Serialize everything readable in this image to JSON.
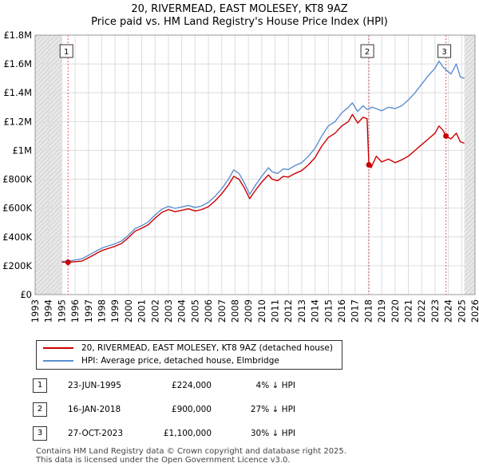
{
  "chart_data": {
    "type": "line",
    "title": "20, RIVERMEAD, EAST MOLESEY, KT8 9AZ",
    "subtitle": "Price paid vs. HM Land Registry's House Price Index (HPI)",
    "xlim": [
      1993,
      2026
    ],
    "ylim": [
      0,
      1800000
    ],
    "x_ticks": [
      1993,
      1994,
      1995,
      1996,
      1997,
      1998,
      1999,
      2000,
      2001,
      2002,
      2003,
      2004,
      2005,
      2006,
      2007,
      2008,
      2009,
      2010,
      2011,
      2012,
      2013,
      2014,
      2015,
      2016,
      2017,
      2018,
      2019,
      2020,
      2021,
      2022,
      2023,
      2024,
      2025,
      2026
    ],
    "y_ticks": [
      {
        "value": 0,
        "label": "£0"
      },
      {
        "value": 200000,
        "label": "£200K"
      },
      {
        "value": 400000,
        "label": "£400K"
      },
      {
        "value": 600000,
        "label": "£600K"
      },
      {
        "value": 800000,
        "label": "£800K"
      },
      {
        "value": 1000000,
        "label": "£1M"
      },
      {
        "value": 1200000,
        "label": "£1.2M"
      },
      {
        "value": 1400000,
        "label": "£1.4M"
      },
      {
        "value": 1600000,
        "label": "£1.6M"
      },
      {
        "value": 1800000,
        "label": "£1.8M"
      }
    ],
    "shaded_regions": [
      [
        1993,
        1995.0
      ],
      [
        2025.2,
        2026
      ]
    ],
    "series": [
      {
        "name": "20, RIVERMEAD, EAST MOLESEY, KT8 9AZ (detached house)",
        "color": "#cc0000",
        "points": [
          [
            1995.0,
            225000
          ],
          [
            1995.47,
            224000
          ],
          [
            1996.0,
            228000
          ],
          [
            1996.5,
            232000
          ],
          [
            1997.0,
            255000
          ],
          [
            1997.5,
            280000
          ],
          [
            1998.0,
            305000
          ],
          [
            1998.5,
            320000
          ],
          [
            1999.0,
            335000
          ],
          [
            1999.5,
            355000
          ],
          [
            2000.0,
            395000
          ],
          [
            2000.5,
            440000
          ],
          [
            2001.0,
            460000
          ],
          [
            2001.5,
            485000
          ],
          [
            2002.0,
            530000
          ],
          [
            2002.5,
            570000
          ],
          [
            2003.0,
            590000
          ],
          [
            2003.5,
            575000
          ],
          [
            2004.0,
            585000
          ],
          [
            2004.5,
            595000
          ],
          [
            2005.0,
            580000
          ],
          [
            2005.5,
            590000
          ],
          [
            2006.0,
            610000
          ],
          [
            2006.5,
            650000
          ],
          [
            2007.0,
            700000
          ],
          [
            2007.5,
            760000
          ],
          [
            2007.9,
            820000
          ],
          [
            2008.3,
            800000
          ],
          [
            2008.7,
            740000
          ],
          [
            2009.1,
            665000
          ],
          [
            2009.5,
            720000
          ],
          [
            2010.0,
            780000
          ],
          [
            2010.5,
            830000
          ],
          [
            2010.8,
            800000
          ],
          [
            2011.2,
            790000
          ],
          [
            2011.6,
            820000
          ],
          [
            2012.0,
            815000
          ],
          [
            2012.5,
            840000
          ],
          [
            2013.0,
            860000
          ],
          [
            2013.5,
            900000
          ],
          [
            2014.0,
            950000
          ],
          [
            2014.5,
            1030000
          ],
          [
            2015.0,
            1090000
          ],
          [
            2015.5,
            1120000
          ],
          [
            2016.0,
            1170000
          ],
          [
            2016.5,
            1200000
          ],
          [
            2016.8,
            1250000
          ],
          [
            2017.2,
            1190000
          ],
          [
            2017.6,
            1230000
          ],
          [
            2017.9,
            1220000
          ],
          [
            2018.04,
            900000
          ],
          [
            2018.2,
            880000
          ],
          [
            2018.6,
            960000
          ],
          [
            2019.0,
            920000
          ],
          [
            2019.5,
            940000
          ],
          [
            2020.0,
            915000
          ],
          [
            2020.5,
            935000
          ],
          [
            2021.0,
            960000
          ],
          [
            2021.5,
            1000000
          ],
          [
            2022.0,
            1040000
          ],
          [
            2022.5,
            1080000
          ],
          [
            2023.0,
            1120000
          ],
          [
            2023.3,
            1170000
          ],
          [
            2023.6,
            1140000
          ],
          [
            2023.82,
            1100000
          ],
          [
            2024.2,
            1080000
          ],
          [
            2024.6,
            1120000
          ],
          [
            2024.9,
            1060000
          ],
          [
            2025.2,
            1050000
          ]
        ]
      },
      {
        "name": "HPI: Average price, detached house, Elmbridge",
        "color": "#5b8fd0",
        "points": [
          [
            1995.0,
            230000
          ],
          [
            1995.5,
            232000
          ],
          [
            1996.0,
            240000
          ],
          [
            1996.5,
            248000
          ],
          [
            1997.0,
            272000
          ],
          [
            1997.5,
            298000
          ],
          [
            1998.0,
            322000
          ],
          [
            1998.5,
            338000
          ],
          [
            1999.0,
            352000
          ],
          [
            1999.5,
            372000
          ],
          [
            2000.0,
            412000
          ],
          [
            2000.5,
            458000
          ],
          [
            2001.0,
            478000
          ],
          [
            2001.5,
            505000
          ],
          [
            2002.0,
            552000
          ],
          [
            2002.5,
            592000
          ],
          [
            2003.0,
            612000
          ],
          [
            2003.5,
            598000
          ],
          [
            2004.0,
            608000
          ],
          [
            2004.5,
            618000
          ],
          [
            2005.0,
            605000
          ],
          [
            2005.5,
            615000
          ],
          [
            2006.0,
            640000
          ],
          [
            2006.5,
            682000
          ],
          [
            2007.0,
            735000
          ],
          [
            2007.5,
            800000
          ],
          [
            2007.9,
            865000
          ],
          [
            2008.3,
            840000
          ],
          [
            2008.7,
            775000
          ],
          [
            2009.1,
            695000
          ],
          [
            2009.5,
            755000
          ],
          [
            2010.0,
            820000
          ],
          [
            2010.5,
            880000
          ],
          [
            2010.8,
            850000
          ],
          [
            2011.2,
            840000
          ],
          [
            2011.6,
            872000
          ],
          [
            2012.0,
            868000
          ],
          [
            2012.5,
            895000
          ],
          [
            2013.0,
            915000
          ],
          [
            2013.5,
            960000
          ],
          [
            2014.0,
            1015000
          ],
          [
            2014.5,
            1100000
          ],
          [
            2015.0,
            1170000
          ],
          [
            2015.5,
            1200000
          ],
          [
            2016.0,
            1260000
          ],
          [
            2016.5,
            1300000
          ],
          [
            2016.8,
            1330000
          ],
          [
            2017.2,
            1270000
          ],
          [
            2017.6,
            1310000
          ],
          [
            2017.9,
            1285000
          ],
          [
            2018.3,
            1300000
          ],
          [
            2018.6,
            1290000
          ],
          [
            2019.0,
            1275000
          ],
          [
            2019.5,
            1300000
          ],
          [
            2020.0,
            1290000
          ],
          [
            2020.5,
            1310000
          ],
          [
            2021.0,
            1350000
          ],
          [
            2021.5,
            1400000
          ],
          [
            2022.0,
            1460000
          ],
          [
            2022.5,
            1520000
          ],
          [
            2023.0,
            1570000
          ],
          [
            2023.3,
            1620000
          ],
          [
            2023.6,
            1580000
          ],
          [
            2023.82,
            1560000
          ],
          [
            2024.2,
            1530000
          ],
          [
            2024.6,
            1600000
          ],
          [
            2024.9,
            1510000
          ],
          [
            2025.2,
            1500000
          ]
        ]
      }
    ],
    "sales": [
      {
        "label": "1",
        "x": 1995.47,
        "y": 224000
      },
      {
        "label": "2",
        "x": 2018.04,
        "y": 900000
      },
      {
        "label": "3",
        "x": 2023.82,
        "y": 1100000
      }
    ]
  },
  "legend": {
    "items": [
      {
        "label": "20, RIVERMEAD, EAST MOLESEY, KT8 9AZ (detached house)",
        "color": "#cc0000"
      },
      {
        "label": "HPI: Average price, detached house, Elmbridge",
        "color": "#5b8fd0"
      }
    ]
  },
  "transactions": [
    {
      "num": "1",
      "date": "23-JUN-1995",
      "price": "£224,000",
      "hpi": "4% ↓ HPI"
    },
    {
      "num": "2",
      "date": "16-JAN-2018",
      "price": "£900,000",
      "hpi": "27% ↓ HPI"
    },
    {
      "num": "3",
      "date": "27-OCT-2023",
      "price": "£1,100,000",
      "hpi": "30% ↓ HPI"
    }
  ],
  "footer": {
    "line1": "Contains HM Land Registry data © Crown copyright and database right 2025.",
    "line2": "This data is licensed under the Open Government Licence v3.0."
  }
}
